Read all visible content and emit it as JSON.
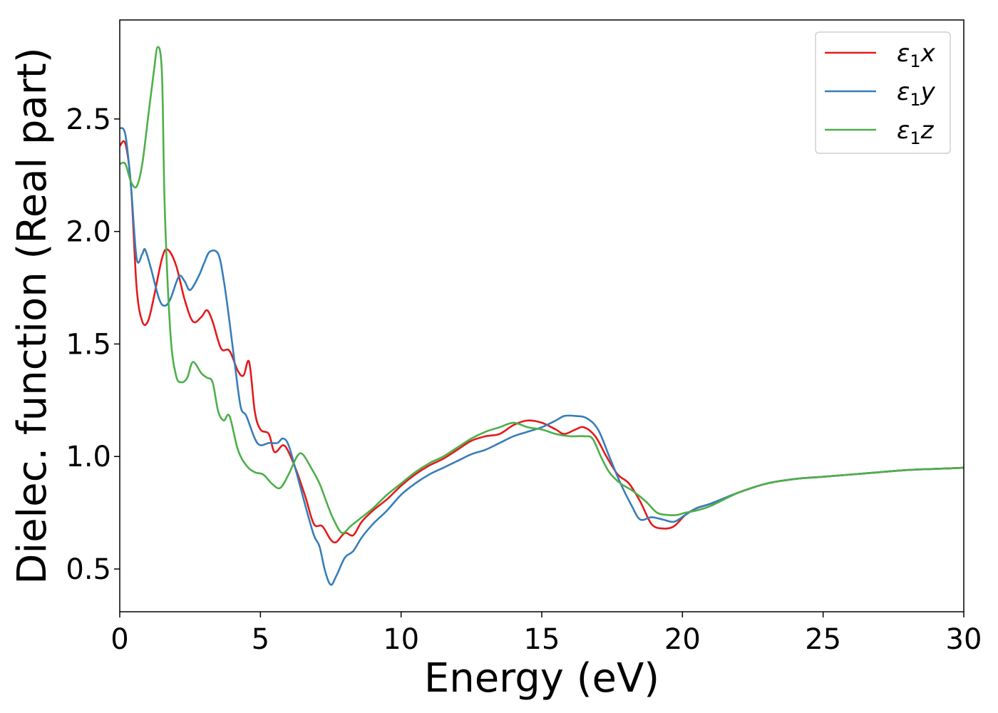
{
  "chart_data": {
    "type": "line",
    "title": "",
    "xlabel": "Energy (eV)",
    "ylabel": "Dielec. function (Real part)",
    "xlim": [
      0,
      30
    ],
    "ylim": [
      0.31,
      2.94
    ],
    "xticks": [
      "0",
      "5",
      "10",
      "15",
      "20",
      "25",
      "30"
    ],
    "yticks": [
      "0.5",
      "1.0",
      "1.5",
      "2.0",
      "2.5"
    ],
    "grid": false,
    "legend_position": "top-right",
    "series": [
      {
        "name": "ε1x",
        "legend_main": "ε",
        "legend_sub": "1",
        "legend_tail": "x",
        "color": "#e41a1c",
        "points": [
          [
            0,
            2.38
          ],
          [
            0.2,
            2.39
          ],
          [
            0.4,
            2.2
          ],
          [
            0.6,
            1.75
          ],
          [
            0.8,
            1.6
          ],
          [
            1.0,
            1.6
          ],
          [
            1.2,
            1.7
          ],
          [
            1.5,
            1.88
          ],
          [
            1.7,
            1.92
          ],
          [
            2.0,
            1.85
          ],
          [
            2.3,
            1.7
          ],
          [
            2.6,
            1.6
          ],
          [
            2.9,
            1.62
          ],
          [
            3.1,
            1.65
          ],
          [
            3.3,
            1.6
          ],
          [
            3.6,
            1.48
          ],
          [
            3.9,
            1.47
          ],
          [
            4.2,
            1.38
          ],
          [
            4.4,
            1.36
          ],
          [
            4.6,
            1.42
          ],
          [
            4.8,
            1.2
          ],
          [
            5.0,
            1.12
          ],
          [
            5.3,
            1.1
          ],
          [
            5.5,
            1.02
          ],
          [
            5.8,
            1.05
          ],
          [
            6.0,
            1.02
          ],
          [
            6.3,
            0.93
          ],
          [
            6.6,
            0.82
          ],
          [
            6.9,
            0.7
          ],
          [
            7.2,
            0.69
          ],
          [
            7.5,
            0.63
          ],
          [
            7.7,
            0.62
          ],
          [
            8.0,
            0.66
          ],
          [
            8.3,
            0.65
          ],
          [
            8.6,
            0.71
          ],
          [
            9.0,
            0.76
          ],
          [
            9.5,
            0.81
          ],
          [
            10,
            0.87
          ],
          [
            10.5,
            0.92
          ],
          [
            11,
            0.96
          ],
          [
            11.5,
            0.99
          ],
          [
            12,
            1.03
          ],
          [
            12.5,
            1.07
          ],
          [
            13,
            1.09
          ],
          [
            13.5,
            1.1
          ],
          [
            14,
            1.14
          ],
          [
            14.5,
            1.16
          ],
          [
            15,
            1.15
          ],
          [
            15.5,
            1.12
          ],
          [
            15.8,
            1.1
          ],
          [
            16.2,
            1.12
          ],
          [
            16.5,
            1.13
          ],
          [
            16.9,
            1.09
          ],
          [
            17.3,
            1.0
          ],
          [
            17.7,
            0.92
          ],
          [
            18.1,
            0.88
          ],
          [
            18.5,
            0.8
          ],
          [
            18.9,
            0.7
          ],
          [
            19.3,
            0.68
          ],
          [
            19.7,
            0.69
          ],
          [
            20.1,
            0.74
          ],
          [
            20.5,
            0.77
          ],
          [
            21,
            0.79
          ],
          [
            22,
            0.84
          ],
          [
            23,
            0.88
          ],
          [
            24,
            0.9
          ],
          [
            25,
            0.91
          ],
          [
            26,
            0.92
          ],
          [
            27,
            0.93
          ],
          [
            28,
            0.94
          ],
          [
            29,
            0.945
          ],
          [
            30,
            0.95
          ]
        ]
      },
      {
        "name": "ε1y",
        "legend_main": "ε",
        "legend_sub": "1",
        "legend_tail": "y",
        "color": "#377eb8",
        "points": [
          [
            0,
            2.46
          ],
          [
            0.2,
            2.43
          ],
          [
            0.4,
            2.2
          ],
          [
            0.6,
            1.88
          ],
          [
            0.8,
            1.9
          ],
          [
            0.9,
            1.92
          ],
          [
            1.1,
            1.84
          ],
          [
            1.4,
            1.7
          ],
          [
            1.6,
            1.67
          ],
          [
            1.8,
            1.7
          ],
          [
            2.1,
            1.8
          ],
          [
            2.3,
            1.78
          ],
          [
            2.5,
            1.74
          ],
          [
            2.8,
            1.8
          ],
          [
            3.0,
            1.86
          ],
          [
            3.2,
            1.91
          ],
          [
            3.5,
            1.9
          ],
          [
            3.7,
            1.78
          ],
          [
            3.9,
            1.6
          ],
          [
            4.1,
            1.4
          ],
          [
            4.3,
            1.22
          ],
          [
            4.5,
            1.18
          ],
          [
            4.8,
            1.08
          ],
          [
            5.0,
            1.05
          ],
          [
            5.3,
            1.06
          ],
          [
            5.6,
            1.06
          ],
          [
            5.8,
            1.08
          ],
          [
            6.0,
            1.05
          ],
          [
            6.3,
            0.92
          ],
          [
            6.6,
            0.78
          ],
          [
            6.9,
            0.65
          ],
          [
            7.1,
            0.6
          ],
          [
            7.3,
            0.49
          ],
          [
            7.5,
            0.43
          ],
          [
            7.7,
            0.47
          ],
          [
            8.0,
            0.55
          ],
          [
            8.3,
            0.58
          ],
          [
            8.6,
            0.64
          ],
          [
            9.0,
            0.7
          ],
          [
            9.5,
            0.76
          ],
          [
            10,
            0.83
          ],
          [
            10.5,
            0.88
          ],
          [
            11,
            0.92
          ],
          [
            11.5,
            0.95
          ],
          [
            12,
            0.98
          ],
          [
            12.5,
            1.01
          ],
          [
            13,
            1.03
          ],
          [
            13.5,
            1.06
          ],
          [
            14,
            1.09
          ],
          [
            14.5,
            1.11
          ],
          [
            15,
            1.13
          ],
          [
            15.5,
            1.16
          ],
          [
            15.8,
            1.18
          ],
          [
            16.2,
            1.18
          ],
          [
            16.6,
            1.17
          ],
          [
            17,
            1.12
          ],
          [
            17.4,
            1.0
          ],
          [
            17.8,
            0.88
          ],
          [
            18.2,
            0.78
          ],
          [
            18.5,
            0.72
          ],
          [
            18.9,
            0.73
          ],
          [
            19.3,
            0.72
          ],
          [
            19.7,
            0.71
          ],
          [
            20.1,
            0.74
          ],
          [
            20.5,
            0.77
          ],
          [
            21,
            0.79
          ],
          [
            22,
            0.84
          ],
          [
            23,
            0.88
          ],
          [
            24,
            0.9
          ],
          [
            25,
            0.91
          ],
          [
            26,
            0.92
          ],
          [
            27,
            0.93
          ],
          [
            28,
            0.94
          ],
          [
            29,
            0.945
          ],
          [
            30,
            0.95
          ]
        ]
      },
      {
        "name": "ε1z",
        "legend_main": "ε",
        "legend_sub": "1",
        "legend_tail": "z",
        "color": "#4daf4a",
        "points": [
          [
            0,
            2.3
          ],
          [
            0.2,
            2.3
          ],
          [
            0.4,
            2.22
          ],
          [
            0.6,
            2.2
          ],
          [
            0.8,
            2.3
          ],
          [
            1.0,
            2.5
          ],
          [
            1.2,
            2.7
          ],
          [
            1.35,
            2.82
          ],
          [
            1.5,
            2.7
          ],
          [
            1.6,
            2.1
          ],
          [
            1.8,
            1.55
          ],
          [
            2.0,
            1.36
          ],
          [
            2.2,
            1.33
          ],
          [
            2.4,
            1.35
          ],
          [
            2.6,
            1.42
          ],
          [
            2.9,
            1.37
          ],
          [
            3.1,
            1.35
          ],
          [
            3.3,
            1.33
          ],
          [
            3.5,
            1.2
          ],
          [
            3.7,
            1.16
          ],
          [
            3.9,
            1.18
          ],
          [
            4.2,
            1.03
          ],
          [
            4.5,
            0.96
          ],
          [
            4.8,
            0.93
          ],
          [
            5.1,
            0.92
          ],
          [
            5.4,
            0.88
          ],
          [
            5.7,
            0.86
          ],
          [
            6.0,
            0.92
          ],
          [
            6.3,
            1.0
          ],
          [
            6.5,
            1.01
          ],
          [
            6.8,
            0.95
          ],
          [
            7.1,
            0.88
          ],
          [
            7.4,
            0.78
          ],
          [
            7.6,
            0.72
          ],
          [
            7.9,
            0.66
          ],
          [
            8.2,
            0.69
          ],
          [
            8.5,
            0.72
          ],
          [
            9.0,
            0.77
          ],
          [
            9.5,
            0.83
          ],
          [
            10,
            0.88
          ],
          [
            10.5,
            0.93
          ],
          [
            11,
            0.97
          ],
          [
            11.5,
            1.0
          ],
          [
            12,
            1.04
          ],
          [
            12.5,
            1.08
          ],
          [
            13,
            1.11
          ],
          [
            13.5,
            1.13
          ],
          [
            14,
            1.15
          ],
          [
            14.5,
            1.13
          ],
          [
            15,
            1.12
          ],
          [
            15.5,
            1.1
          ],
          [
            16,
            1.09
          ],
          [
            16.5,
            1.09
          ],
          [
            16.8,
            1.08
          ],
          [
            17.1,
            1.0
          ],
          [
            17.4,
            0.93
          ],
          [
            17.8,
            0.88
          ],
          [
            18.2,
            0.85
          ],
          [
            18.7,
            0.8
          ],
          [
            19.1,
            0.75
          ],
          [
            19.5,
            0.74
          ],
          [
            19.8,
            0.74
          ],
          [
            20.1,
            0.75
          ],
          [
            20.5,
            0.76
          ],
          [
            21,
            0.78
          ],
          [
            22,
            0.84
          ],
          [
            23,
            0.88
          ],
          [
            24,
            0.9
          ],
          [
            25,
            0.91
          ],
          [
            26,
            0.92
          ],
          [
            27,
            0.93
          ],
          [
            28,
            0.94
          ],
          [
            29,
            0.945
          ],
          [
            30,
            0.95
          ]
        ]
      }
    ]
  }
}
